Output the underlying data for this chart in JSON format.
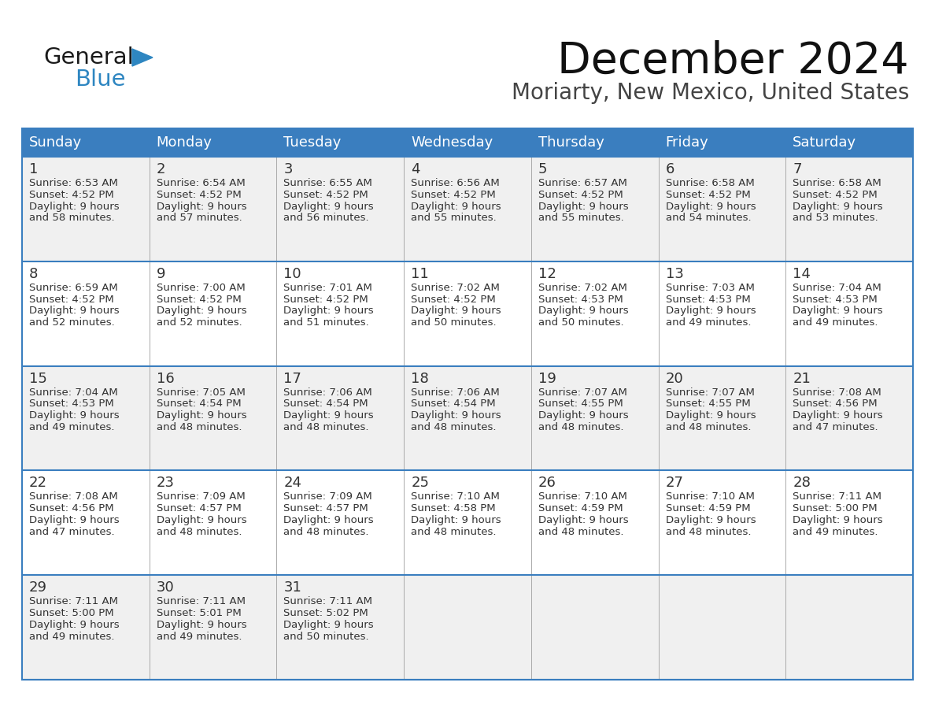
{
  "title": "December 2024",
  "subtitle": "Moriarty, New Mexico, United States",
  "days_of_week": [
    "Sunday",
    "Monday",
    "Tuesday",
    "Wednesday",
    "Thursday",
    "Friday",
    "Saturday"
  ],
  "header_bg": "#3A7EBF",
  "header_text_color": "#FFFFFF",
  "cell_bg_week1": "#F0F0F0",
  "cell_bg_week2": "#FFFFFF",
  "border_color": "#3A7EBF",
  "separator_color": "#AAAAAA",
  "text_color": "#333333",
  "num_color": "#333333",
  "logo_color_general": "#1a1a1a",
  "logo_color_blue": "#2E86C1",
  "weeks": [
    {
      "days": [
        {
          "day": 1,
          "sunrise": "6:53 AM",
          "sunset": "4:52 PM",
          "daylight_hrs": "9 hours",
          "daylight_min": "and 58 minutes."
        },
        {
          "day": 2,
          "sunrise": "6:54 AM",
          "sunset": "4:52 PM",
          "daylight_hrs": "9 hours",
          "daylight_min": "and 57 minutes."
        },
        {
          "day": 3,
          "sunrise": "6:55 AM",
          "sunset": "4:52 PM",
          "daylight_hrs": "9 hours",
          "daylight_min": "and 56 minutes."
        },
        {
          "day": 4,
          "sunrise": "6:56 AM",
          "sunset": "4:52 PM",
          "daylight_hrs": "9 hours",
          "daylight_min": "and 55 minutes."
        },
        {
          "day": 5,
          "sunrise": "6:57 AM",
          "sunset": "4:52 PM",
          "daylight_hrs": "9 hours",
          "daylight_min": "and 55 minutes."
        },
        {
          "day": 6,
          "sunrise": "6:58 AM",
          "sunset": "4:52 PM",
          "daylight_hrs": "9 hours",
          "daylight_min": "and 54 minutes."
        },
        {
          "day": 7,
          "sunrise": "6:58 AM",
          "sunset": "4:52 PM",
          "daylight_hrs": "9 hours",
          "daylight_min": "and 53 minutes."
        }
      ]
    },
    {
      "days": [
        {
          "day": 8,
          "sunrise": "6:59 AM",
          "sunset": "4:52 PM",
          "daylight_hrs": "9 hours",
          "daylight_min": "and 52 minutes."
        },
        {
          "day": 9,
          "sunrise": "7:00 AM",
          "sunset": "4:52 PM",
          "daylight_hrs": "9 hours",
          "daylight_min": "and 52 minutes."
        },
        {
          "day": 10,
          "sunrise": "7:01 AM",
          "sunset": "4:52 PM",
          "daylight_hrs": "9 hours",
          "daylight_min": "and 51 minutes."
        },
        {
          "day": 11,
          "sunrise": "7:02 AM",
          "sunset": "4:52 PM",
          "daylight_hrs": "9 hours",
          "daylight_min": "and 50 minutes."
        },
        {
          "day": 12,
          "sunrise": "7:02 AM",
          "sunset": "4:53 PM",
          "daylight_hrs": "9 hours",
          "daylight_min": "and 50 minutes."
        },
        {
          "day": 13,
          "sunrise": "7:03 AM",
          "sunset": "4:53 PM",
          "daylight_hrs": "9 hours",
          "daylight_min": "and 49 minutes."
        },
        {
          "day": 14,
          "sunrise": "7:04 AM",
          "sunset": "4:53 PM",
          "daylight_hrs": "9 hours",
          "daylight_min": "and 49 minutes."
        }
      ]
    },
    {
      "days": [
        {
          "day": 15,
          "sunrise": "7:04 AM",
          "sunset": "4:53 PM",
          "daylight_hrs": "9 hours",
          "daylight_min": "and 49 minutes."
        },
        {
          "day": 16,
          "sunrise": "7:05 AM",
          "sunset": "4:54 PM",
          "daylight_hrs": "9 hours",
          "daylight_min": "and 48 minutes."
        },
        {
          "day": 17,
          "sunrise": "7:06 AM",
          "sunset": "4:54 PM",
          "daylight_hrs": "9 hours",
          "daylight_min": "and 48 minutes."
        },
        {
          "day": 18,
          "sunrise": "7:06 AM",
          "sunset": "4:54 PM",
          "daylight_hrs": "9 hours",
          "daylight_min": "and 48 minutes."
        },
        {
          "day": 19,
          "sunrise": "7:07 AM",
          "sunset": "4:55 PM",
          "daylight_hrs": "9 hours",
          "daylight_min": "and 48 minutes."
        },
        {
          "day": 20,
          "sunrise": "7:07 AM",
          "sunset": "4:55 PM",
          "daylight_hrs": "9 hours",
          "daylight_min": "and 48 minutes."
        },
        {
          "day": 21,
          "sunrise": "7:08 AM",
          "sunset": "4:56 PM",
          "daylight_hrs": "9 hours",
          "daylight_min": "and 47 minutes."
        }
      ]
    },
    {
      "days": [
        {
          "day": 22,
          "sunrise": "7:08 AM",
          "sunset": "4:56 PM",
          "daylight_hrs": "9 hours",
          "daylight_min": "and 47 minutes."
        },
        {
          "day": 23,
          "sunrise": "7:09 AM",
          "sunset": "4:57 PM",
          "daylight_hrs": "9 hours",
          "daylight_min": "and 48 minutes."
        },
        {
          "day": 24,
          "sunrise": "7:09 AM",
          "sunset": "4:57 PM",
          "daylight_hrs": "9 hours",
          "daylight_min": "and 48 minutes."
        },
        {
          "day": 25,
          "sunrise": "7:10 AM",
          "sunset": "4:58 PM",
          "daylight_hrs": "9 hours",
          "daylight_min": "and 48 minutes."
        },
        {
          "day": 26,
          "sunrise": "7:10 AM",
          "sunset": "4:59 PM",
          "daylight_hrs": "9 hours",
          "daylight_min": "and 48 minutes."
        },
        {
          "day": 27,
          "sunrise": "7:10 AM",
          "sunset": "4:59 PM",
          "daylight_hrs": "9 hours",
          "daylight_min": "and 48 minutes."
        },
        {
          "day": 28,
          "sunrise": "7:11 AM",
          "sunset": "5:00 PM",
          "daylight_hrs": "9 hours",
          "daylight_min": "and 49 minutes."
        }
      ]
    },
    {
      "days": [
        {
          "day": 29,
          "sunrise": "7:11 AM",
          "sunset": "5:00 PM",
          "daylight_hrs": "9 hours",
          "daylight_min": "and 49 minutes."
        },
        {
          "day": 30,
          "sunrise": "7:11 AM",
          "sunset": "5:01 PM",
          "daylight_hrs": "9 hours",
          "daylight_min": "and 49 minutes."
        },
        {
          "day": 31,
          "sunrise": "7:11 AM",
          "sunset": "5:02 PM",
          "daylight_hrs": "9 hours",
          "daylight_min": "and 50 minutes."
        },
        null,
        null,
        null,
        null
      ]
    }
  ]
}
